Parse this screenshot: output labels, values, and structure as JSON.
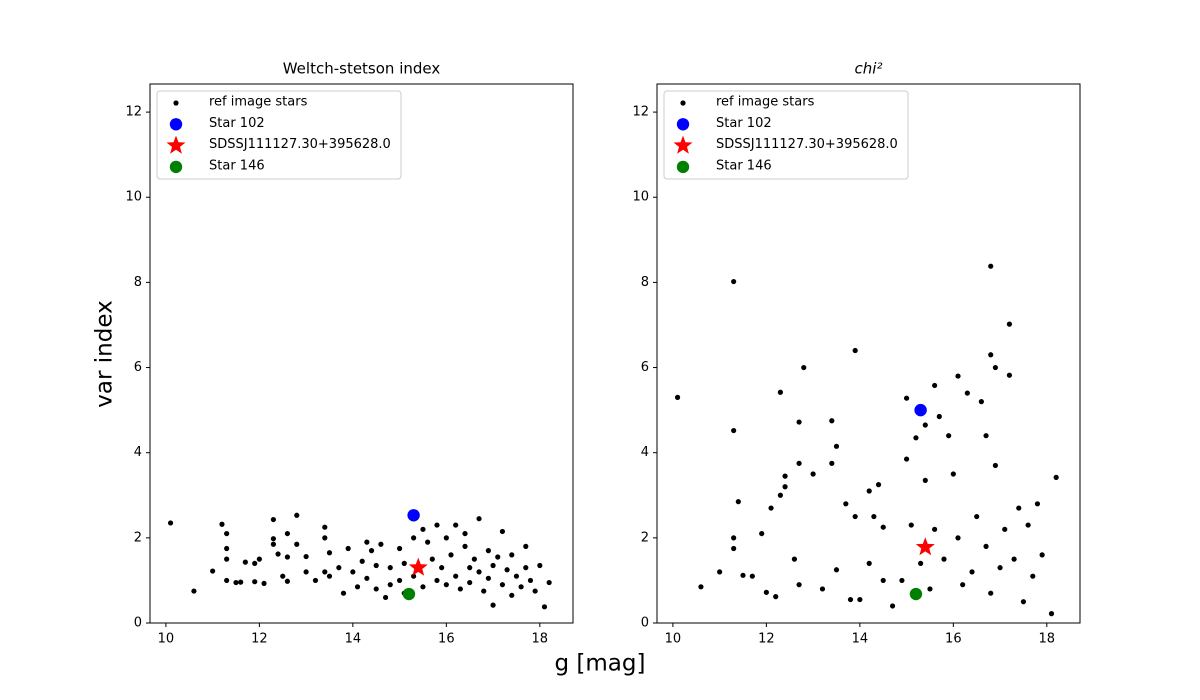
{
  "x_label": "g [mag]",
  "y_label": "var index",
  "chart_data": [
    {
      "type": "scatter",
      "title": "Weltch-stetson index",
      "title_style": "normal",
      "xlim": [
        9.66,
        18.71
      ],
      "ylim": [
        0,
        12.66
      ],
      "xticks": [
        10,
        12,
        14,
        16,
        18
      ],
      "yticks": [
        0,
        2,
        4,
        6,
        8,
        10,
        12
      ],
      "legend": "upper left",
      "grid": false,
      "series": [
        {
          "name": "ref image stars",
          "color": "#000000",
          "marker": "dot",
          "x": [
            10.1,
            10.6,
            11.0,
            11.2,
            11.3,
            11.3,
            11.3,
            11.3,
            11.5,
            11.6,
            11.7,
            11.9,
            11.9,
            12.0,
            12.1,
            12.3,
            12.3,
            12.3,
            12.4,
            12.5,
            12.6,
            12.6,
            12.6,
            12.8,
            12.8,
            13.0,
            13.0,
            13.2,
            13.4,
            13.4,
            13.4,
            13.5,
            13.5,
            13.7,
            13.8,
            13.9,
            14.0,
            14.1,
            14.2,
            14.3,
            14.3,
            14.4,
            14.5,
            14.5,
            14.6,
            14.7,
            14.8,
            14.8,
            15.0,
            15.0,
            15.1,
            15.1,
            15.3,
            15.3,
            15.5,
            15.5,
            15.6,
            15.7,
            15.8,
            15.8,
            15.9,
            16.0,
            16.0,
            16.1,
            16.2,
            16.2,
            16.3,
            16.4,
            16.4,
            16.5,
            16.5,
            16.6,
            16.7,
            16.7,
            16.8,
            16.9,
            16.9,
            17.0,
            17.0,
            17.1,
            17.2,
            17.2,
            17.3,
            17.4,
            17.4,
            17.5,
            17.6,
            17.7,
            17.7,
            17.8,
            17.9,
            18.0,
            18.1,
            18.2
          ],
          "y": [
            2.35,
            0.75,
            1.22,
            2.32,
            2.1,
            1.75,
            1.5,
            1.0,
            0.95,
            0.96,
            1.43,
            1.4,
            0.97,
            1.5,
            0.93,
            2.43,
            1.98,
            1.85,
            1.62,
            1.1,
            2.1,
            1.55,
            0.98,
            2.53,
            1.85,
            1.56,
            1.2,
            1.0,
            2.25,
            2.0,
            1.2,
            1.65,
            1.1,
            1.3,
            0.7,
            1.75,
            1.2,
            0.85,
            1.45,
            1.9,
            1.05,
            1.7,
            1.35,
            0.8,
            1.85,
            0.6,
            1.3,
            0.9,
            1.75,
            1.0,
            1.4,
            0.7,
            2.0,
            1.1,
            2.2,
            0.85,
            1.9,
            1.5,
            2.3,
            1.0,
            1.3,
            2.0,
            0.9,
            1.6,
            2.3,
            1.1,
            0.8,
            1.8,
            2.1,
            1.3,
            0.95,
            1.5,
            2.45,
            1.2,
            0.75,
            1.7,
            1.05,
            0.42,
            1.35,
            1.55,
            0.9,
            2.15,
            1.25,
            0.65,
            1.6,
            1.1,
            0.85,
            1.8,
            1.3,
            1.0,
            0.75,
            1.35,
            0.38,
            0.95
          ]
        },
        {
          "name": "Star 102",
          "color": "#0000ff",
          "marker": "circle",
          "x": [
            15.3
          ],
          "y": [
            2.53
          ]
        },
        {
          "name": "SDSSJ111127.30+395628.0",
          "color": "#ff0000",
          "marker": "star",
          "x": [
            15.4
          ],
          "y": [
            1.3
          ]
        },
        {
          "name": "Star 146",
          "color": "#008000",
          "marker": "circle",
          "x": [
            15.2
          ],
          "y": [
            0.68
          ]
        }
      ]
    },
    {
      "type": "scatter",
      "title": "chi²",
      "title_style": "italic",
      "xlim": [
        9.66,
        18.71
      ],
      "ylim": [
        0,
        12.66
      ],
      "xticks": [
        10,
        12,
        14,
        16,
        18
      ],
      "yticks": [
        0,
        2,
        4,
        6,
        8,
        10,
        12
      ],
      "legend": "upper left",
      "grid": false,
      "series": [
        {
          "name": "ref image stars",
          "color": "#000000",
          "marker": "dot",
          "x": [
            10.1,
            10.6,
            11.0,
            11.3,
            11.3,
            11.3,
            11.3,
            11.4,
            11.5,
            11.7,
            11.9,
            12.0,
            12.1,
            12.2,
            12.3,
            12.3,
            12.4,
            12.4,
            12.6,
            12.7,
            12.7,
            12.7,
            12.8,
            13.0,
            13.2,
            13.4,
            13.4,
            13.5,
            13.5,
            13.7,
            13.8,
            13.9,
            13.9,
            14.0,
            14.2,
            14.2,
            14.3,
            14.4,
            14.5,
            14.5,
            14.7,
            14.9,
            15.0,
            15.0,
            15.1,
            15.2,
            15.3,
            15.4,
            15.4,
            15.5,
            15.6,
            15.6,
            15.7,
            15.8,
            15.9,
            16.0,
            16.1,
            16.1,
            16.2,
            16.3,
            16.4,
            16.5,
            16.6,
            16.7,
            16.7,
            16.8,
            16.8,
            16.8,
            16.9,
            16.9,
            17.0,
            17.1,
            17.2,
            17.2,
            17.3,
            17.4,
            17.5,
            17.6,
            17.7,
            17.8,
            17.9,
            18.1,
            18.2
          ],
          "y": [
            5.3,
            0.85,
            1.2,
            8.02,
            4.52,
            2.0,
            1.75,
            2.85,
            1.12,
            1.1,
            2.1,
            0.72,
            2.7,
            0.62,
            5.42,
            3.0,
            3.45,
            3.2,
            1.5,
            4.72,
            3.75,
            0.9,
            6.0,
            3.5,
            0.8,
            4.75,
            3.75,
            4.15,
            1.25,
            2.8,
            0.55,
            6.4,
            2.5,
            0.55,
            3.1,
            1.4,
            2.5,
            3.25,
            2.25,
            1.0,
            0.4,
            1.0,
            5.28,
            3.85,
            2.3,
            4.35,
            1.4,
            4.65,
            3.35,
            0.8,
            5.58,
            2.2,
            4.85,
            1.5,
            4.4,
            3.5,
            5.8,
            2.0,
            0.9,
            5.4,
            1.2,
            2.5,
            5.2,
            4.4,
            1.8,
            8.38,
            6.3,
            0.7,
            6.0,
            3.7,
            1.3,
            2.2,
            7.02,
            5.82,
            1.5,
            2.7,
            0.5,
            2.3,
            1.1,
            2.8,
            1.6,
            0.22,
            3.42
          ]
        },
        {
          "name": "Star 102",
          "color": "#0000ff",
          "marker": "circle",
          "x": [
            15.3
          ],
          "y": [
            5.0
          ]
        },
        {
          "name": "SDSSJ111127.30+395628.0",
          "color": "#ff0000",
          "marker": "star",
          "x": [
            15.4
          ],
          "y": [
            1.78
          ]
        },
        {
          "name": "Star 146",
          "color": "#008000",
          "marker": "circle",
          "x": [
            15.2
          ],
          "y": [
            0.68
          ]
        }
      ]
    }
  ]
}
